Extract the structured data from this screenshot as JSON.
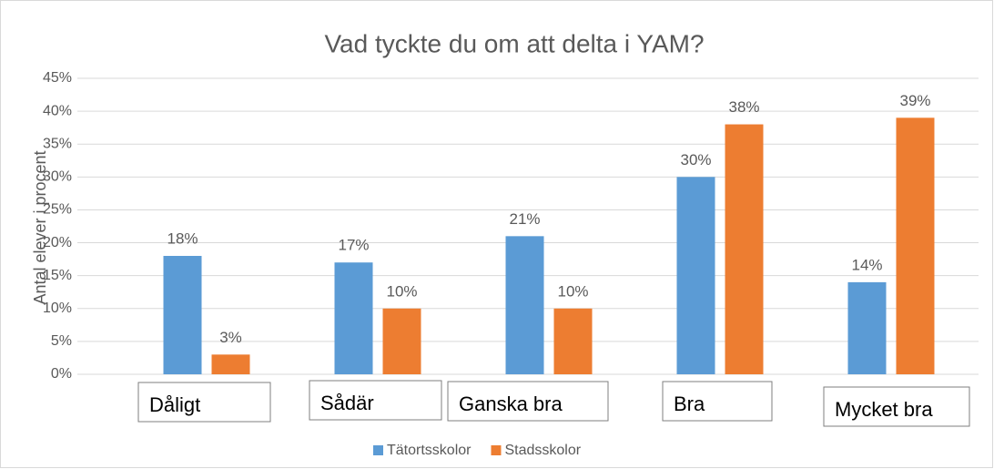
{
  "chart_data": {
    "type": "bar",
    "title": "Vad tyckte du om att delta i YAM?",
    "ylabel": "Antal elever i procent",
    "categories": [
      "Dåligt",
      "Sådär",
      "Ganska bra",
      "Bra",
      "Mycket bra"
    ],
    "series": [
      {
        "name": "Tätortsskolor",
        "color": "#5b9bd5",
        "values": [
          18,
          17,
          21,
          30,
          14
        ],
        "value_labels": [
          "18%",
          "17%",
          "21%",
          "30%",
          "14%"
        ]
      },
      {
        "name": "Stadsskolor",
        "color": "#ed7d31",
        "values": [
          3,
          10,
          10,
          38,
          39
        ],
        "value_labels": [
          "3%",
          "10%",
          "10%",
          "38%",
          "39%"
        ]
      }
    ],
    "ylim": [
      0,
      45
    ],
    "yticks": [
      {
        "value": 0,
        "label": "0%"
      },
      {
        "value": 5,
        "label": "5%"
      },
      {
        "value": 10,
        "label": "10%"
      },
      {
        "value": 15,
        "label": "15%"
      },
      {
        "value": 20,
        "label": "20%"
      },
      {
        "value": 25,
        "label": "25%"
      },
      {
        "value": 30,
        "label": "30%"
      },
      {
        "value": 35,
        "label": "35%"
      },
      {
        "value": 40,
        "label": "40%"
      },
      {
        "value": 45,
        "label": "45%"
      }
    ],
    "grid": true,
    "legend": "bottom"
  }
}
